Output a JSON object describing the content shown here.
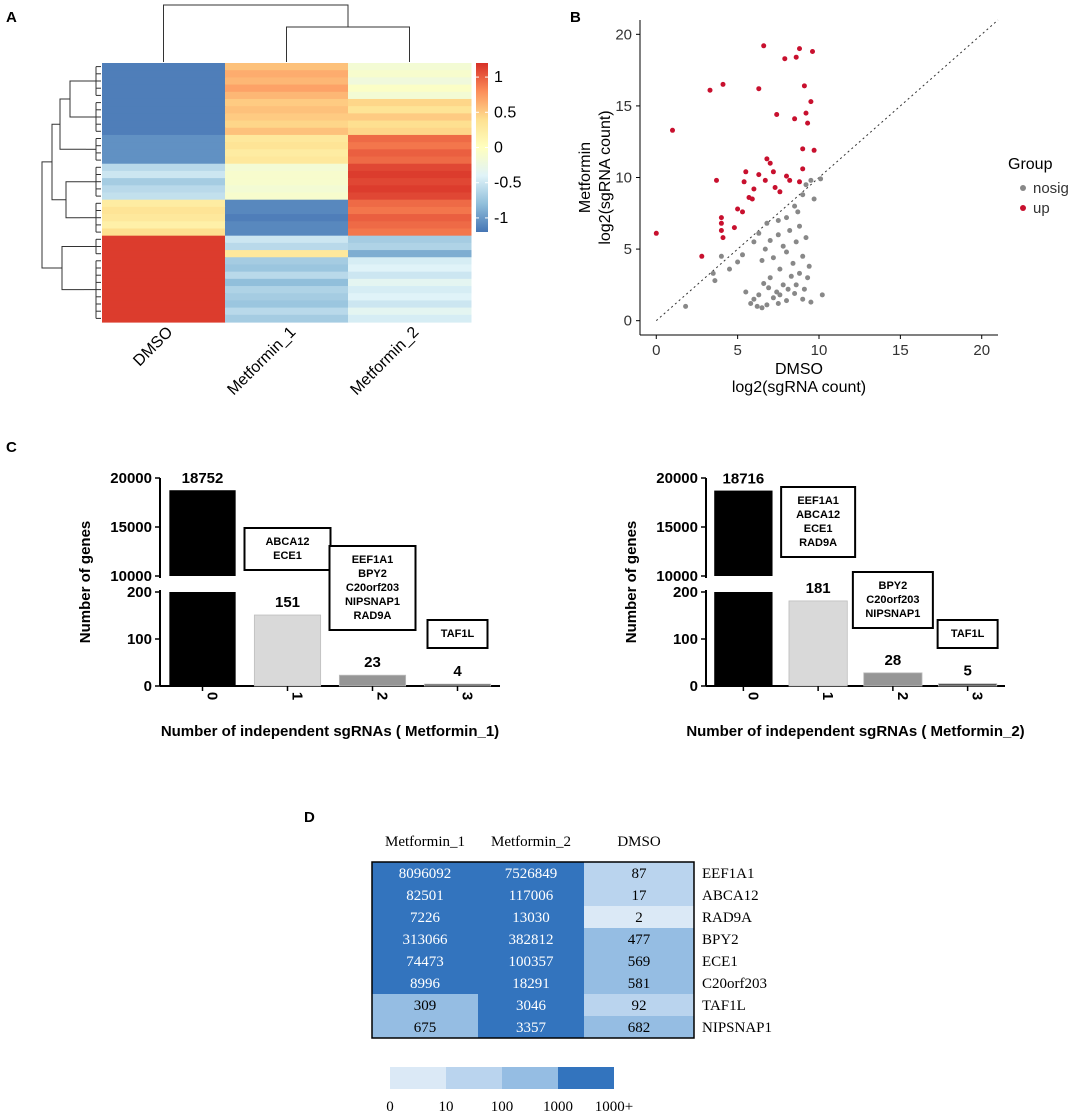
{
  "panels": {
    "a": "A",
    "b": "B",
    "c": "C",
    "d": "D"
  },
  "chart_data": [
    {
      "type": "heatmap",
      "panel": "A",
      "columns": [
        "DMSO",
        "Metformin_1",
        "Metformin_2"
      ],
      "colorbar": {
        "ticks": [
          "1",
          "0.5",
          "0",
          "-0.5",
          "-1"
        ],
        "range": [
          -1.2,
          1.2
        ],
        "colors": [
          "#4575b4",
          "#91bfdb",
          "#e0f3f8",
          "#ffffbf",
          "#fee090",
          "#fc8d59",
          "#d73027"
        ]
      },
      "groups": [
        {
          "rows": 5,
          "values": [
            [
              -1.15,
              0.55,
              -0.15
            ],
            [
              -1.15,
              0.65,
              -0.1
            ],
            [
              -1.15,
              0.6,
              -0.2
            ],
            [
              -1.15,
              0.7,
              -0.05
            ],
            [
              -1.15,
              0.6,
              -0.15
            ]
          ]
        },
        {
          "rows": 5,
          "values": [
            [
              -1.15,
              0.5,
              0.45
            ],
            [
              -1.15,
              0.55,
              0.35
            ],
            [
              -1.15,
              0.5,
              0.5
            ],
            [
              -1.15,
              0.45,
              0.4
            ],
            [
              -1.15,
              0.55,
              0.45
            ]
          ]
        },
        {
          "rows": 4,
          "values": [
            [
              -1.05,
              0.3,
              0.95
            ],
            [
              -1.05,
              0.35,
              0.9
            ],
            [
              -1.05,
              0.25,
              1.0
            ],
            [
              -1.05,
              0.3,
              0.95
            ]
          ]
        },
        {
          "rows": 5,
          "values": [
            [
              -0.6,
              -0.15,
              1.1
            ],
            [
              -0.5,
              -0.1,
              1.15
            ],
            [
              -0.7,
              -0.1,
              1.1
            ],
            [
              -0.6,
              -0.15,
              1.15
            ],
            [
              -0.55,
              -0.1,
              1.1
            ]
          ]
        },
        {
          "rows": 5,
          "values": [
            [
              0.25,
              -1.1,
              0.95
            ],
            [
              0.35,
              -1.1,
              0.9
            ],
            [
              0.3,
              -1.15,
              1.0
            ],
            [
              0.2,
              -1.1,
              0.95
            ],
            [
              0.4,
              -1.1,
              0.9
            ]
          ]
        },
        {
          "rows": 3,
          "values": [
            [
              1.15,
              -0.5,
              -0.7
            ],
            [
              1.15,
              -0.6,
              -0.65
            ],
            [
              1.15,
              0.3,
              -0.9
            ]
          ]
        },
        {
          "rows": 9,
          "values": [
            [
              1.15,
              -0.7,
              -0.45
            ],
            [
              1.15,
              -0.75,
              -0.4
            ],
            [
              1.15,
              -0.6,
              -0.5
            ],
            [
              1.15,
              -0.8,
              -0.35
            ],
            [
              1.15,
              -0.65,
              -0.45
            ],
            [
              1.15,
              -0.7,
              -0.4
            ],
            [
              1.15,
              -0.75,
              -0.5
            ],
            [
              1.15,
              -0.6,
              -0.35
            ],
            [
              1.15,
              -0.7,
              -0.45
            ]
          ]
        }
      ]
    },
    {
      "type": "scatter",
      "panel": "B",
      "xlabel_1": "DMSO",
      "xlabel_2": "log2(sgRNA count)",
      "ylabel_1": "Metformin",
      "ylabel_2": "log2(sgRNA count)",
      "xlim": [
        -1,
        21
      ],
      "ylim": [
        -1,
        21
      ],
      "xticks": [
        "0",
        "5",
        "10",
        "15",
        "20"
      ],
      "yticks": [
        "0",
        "5",
        "10",
        "15",
        "20"
      ],
      "legend_title": "Group",
      "series": [
        {
          "name": "nosig",
          "color": "#888888",
          "points": [
            [
              1.8,
              1.0
            ],
            [
              3.5,
              3.3
            ],
            [
              3.6,
              2.8
            ],
            [
              4.5,
              3.6
            ],
            [
              4.0,
              4.5
            ],
            [
              5.0,
              4.1
            ],
            [
              5.3,
              4.6
            ],
            [
              5.5,
              2.0
            ],
            [
              5.8,
              1.2
            ],
            [
              6.0,
              1.5
            ],
            [
              6.2,
              1.0
            ],
            [
              6.3,
              1.8
            ],
            [
              6.5,
              0.9
            ],
            [
              6.6,
              2.6
            ],
            [
              6.8,
              1.1
            ],
            [
              6.9,
              2.3
            ],
            [
              7.0,
              3.0
            ],
            [
              7.2,
              1.6
            ],
            [
              7.4,
              2.0
            ],
            [
              7.5,
              1.2
            ],
            [
              7.6,
              1.8
            ],
            [
              7.8,
              2.5
            ],
            [
              8.0,
              1.4
            ],
            [
              8.1,
              2.2
            ],
            [
              8.3,
              3.1
            ],
            [
              8.5,
              1.9
            ],
            [
              8.6,
              2.5
            ],
            [
              8.8,
              3.3
            ],
            [
              9.0,
              1.5
            ],
            [
              9.1,
              2.2
            ],
            [
              9.3,
              3.0
            ],
            [
              9.5,
              1.3
            ],
            [
              10.2,
              1.8
            ],
            [
              6.0,
              5.5
            ],
            [
              6.3,
              6.1
            ],
            [
              6.5,
              4.2
            ],
            [
              6.7,
              5.0
            ],
            [
              7.0,
              5.6
            ],
            [
              7.2,
              4.4
            ],
            [
              7.5,
              6.0
            ],
            [
              7.6,
              3.6
            ],
            [
              7.8,
              5.2
            ],
            [
              8.0,
              4.8
            ],
            [
              8.2,
              6.3
            ],
            [
              8.4,
              4.0
            ],
            [
              8.6,
              5.5
            ],
            [
              8.8,
              6.6
            ],
            [
              9.0,
              4.5
            ],
            [
              9.2,
              5.8
            ],
            [
              9.4,
              3.8
            ],
            [
              8.0,
              7.2
            ],
            [
              8.5,
              8.0
            ],
            [
              8.7,
              7.6
            ],
            [
              9.0,
              8.8
            ],
            [
              9.2,
              9.5
            ],
            [
              9.5,
              9.8
            ],
            [
              9.7,
              8.5
            ],
            [
              10.1,
              9.9
            ],
            [
              7.5,
              7.0
            ],
            [
              6.8,
              6.8
            ]
          ]
        },
        {
          "name": "up",
          "color": "#c8102e",
          "points": [
            [
              0.0,
              6.1
            ],
            [
              1.0,
              13.3
            ],
            [
              2.8,
              4.5
            ],
            [
              3.3,
              16.1
            ],
            [
              3.7,
              9.8
            ],
            [
              4.1,
              16.5
            ],
            [
              4.0,
              7.2
            ],
            [
              4.0,
              6.8
            ],
            [
              4.0,
              6.3
            ],
            [
              4.1,
              5.8
            ],
            [
              4.8,
              6.5
            ],
            [
              5.0,
              7.8
            ],
            [
              5.3,
              7.6
            ],
            [
              5.4,
              9.7
            ],
            [
              5.5,
              10.4
            ],
            [
              5.7,
              8.6
            ],
            [
              5.9,
              8.5
            ],
            [
              6.0,
              9.2
            ],
            [
              6.3,
              10.2
            ],
            [
              6.3,
              16.2
            ],
            [
              6.6,
              19.2
            ],
            [
              6.7,
              9.8
            ],
            [
              6.8,
              11.3
            ],
            [
              7.0,
              11.0
            ],
            [
              7.2,
              10.4
            ],
            [
              7.4,
              14.4
            ],
            [
              7.6,
              9.0
            ],
            [
              7.9,
              18.3
            ],
            [
              8.0,
              10.1
            ],
            [
              8.2,
              9.8
            ],
            [
              8.5,
              14.1
            ],
            [
              8.6,
              18.4
            ],
            [
              8.8,
              19.0
            ],
            [
              9.0,
              12.0
            ],
            [
              9.1,
              16.4
            ],
            [
              9.2,
              14.5
            ],
            [
              9.3,
              13.8
            ],
            [
              9.5,
              15.3
            ],
            [
              9.6,
              18.8
            ],
            [
              9.7,
              11.9
            ],
            [
              9.0,
              10.6
            ],
            [
              8.8,
              9.7
            ],
            [
              7.3,
              9.3
            ]
          ]
        }
      ]
    },
    {
      "type": "bar",
      "panel": "C-left",
      "title": "Number of independent sgRNAs ( Metformin_1)",
      "ylabel": "Number of genes",
      "categories": [
        "0",
        "1",
        "2",
        "3"
      ],
      "values": [
        18752,
        151,
        23,
        4
      ],
      "value_labels": [
        "18752",
        "151",
        "23",
        "4"
      ],
      "colors": [
        "#000000",
        "#d9d9d9",
        "#969696",
        "#505050"
      ],
      "ybreak": {
        "lower": [
          0,
          200
        ],
        "upper": [
          10000,
          20000
        ]
      },
      "yticks_lower": [
        "0",
        "100",
        "200"
      ],
      "yticks_upper": [
        "10000",
        "15000",
        "20000"
      ],
      "boxes": [
        {
          "category": "1",
          "genes": [
            "ABCA12",
            "ECE1"
          ]
        },
        {
          "category": "2",
          "genes": [
            "EEF1A1",
            "BPY2",
            "C20orf203",
            "NIPSNAP1",
            "RAD9A"
          ]
        },
        {
          "category": "3",
          "genes": [
            "TAF1L"
          ]
        }
      ]
    },
    {
      "type": "bar",
      "panel": "C-right",
      "title": "Number of independent sgRNAs ( Metformin_2)",
      "ylabel": "Number of genes",
      "categories": [
        "0",
        "1",
        "2",
        "3"
      ],
      "values": [
        18716,
        181,
        28,
        5
      ],
      "value_labels": [
        "18716",
        "181",
        "28",
        "5"
      ],
      "colors": [
        "#000000",
        "#d9d9d9",
        "#969696",
        "#505050"
      ],
      "ybreak": {
        "lower": [
          0,
          200
        ],
        "upper": [
          10000,
          20000
        ]
      },
      "yticks_lower": [
        "0",
        "100",
        "200"
      ],
      "yticks_upper": [
        "10000",
        "15000",
        "20000"
      ],
      "boxes": [
        {
          "category": "1",
          "genes": [
            "EEF1A1",
            "ABCA12",
            "ECE1",
            "RAD9A"
          ]
        },
        {
          "category": "2",
          "genes": [
            "BPY2",
            "C20orf203",
            "NIPSNAP1"
          ]
        },
        {
          "category": "3",
          "genes": [
            "TAF1L"
          ]
        }
      ]
    },
    {
      "type": "table",
      "panel": "D",
      "columns": [
        "Metformin_1",
        "Metformin_2",
        "DMSO"
      ],
      "rows": [
        {
          "gene": "EEF1A1",
          "values": [
            "8096092",
            "7526849",
            "87"
          ]
        },
        {
          "gene": "ABCA12",
          "values": [
            "82501",
            "117006",
            "17"
          ]
        },
        {
          "gene": "RAD9A",
          "values": [
            "7226",
            "13030",
            "2"
          ]
        },
        {
          "gene": "BPY2",
          "values": [
            "313066",
            "382812",
            "477"
          ]
        },
        {
          "gene": "ECE1",
          "values": [
            "74473",
            "100357",
            "569"
          ]
        },
        {
          "gene": "C20orf203",
          "values": [
            "8996",
            "18291",
            "581"
          ]
        },
        {
          "gene": "TAF1L",
          "values": [
            "309",
            "3046",
            "92"
          ]
        },
        {
          "gene": "NIPSNAP1",
          "values": [
            "675",
            "3357",
            "682"
          ]
        }
      ],
      "legend_labels": [
        "0",
        "10",
        "100",
        "1000",
        "1000+"
      ],
      "legend_colors": [
        "#dbe9f6",
        "#bad4ee",
        "#95bde3",
        "#3374be"
      ]
    }
  ]
}
